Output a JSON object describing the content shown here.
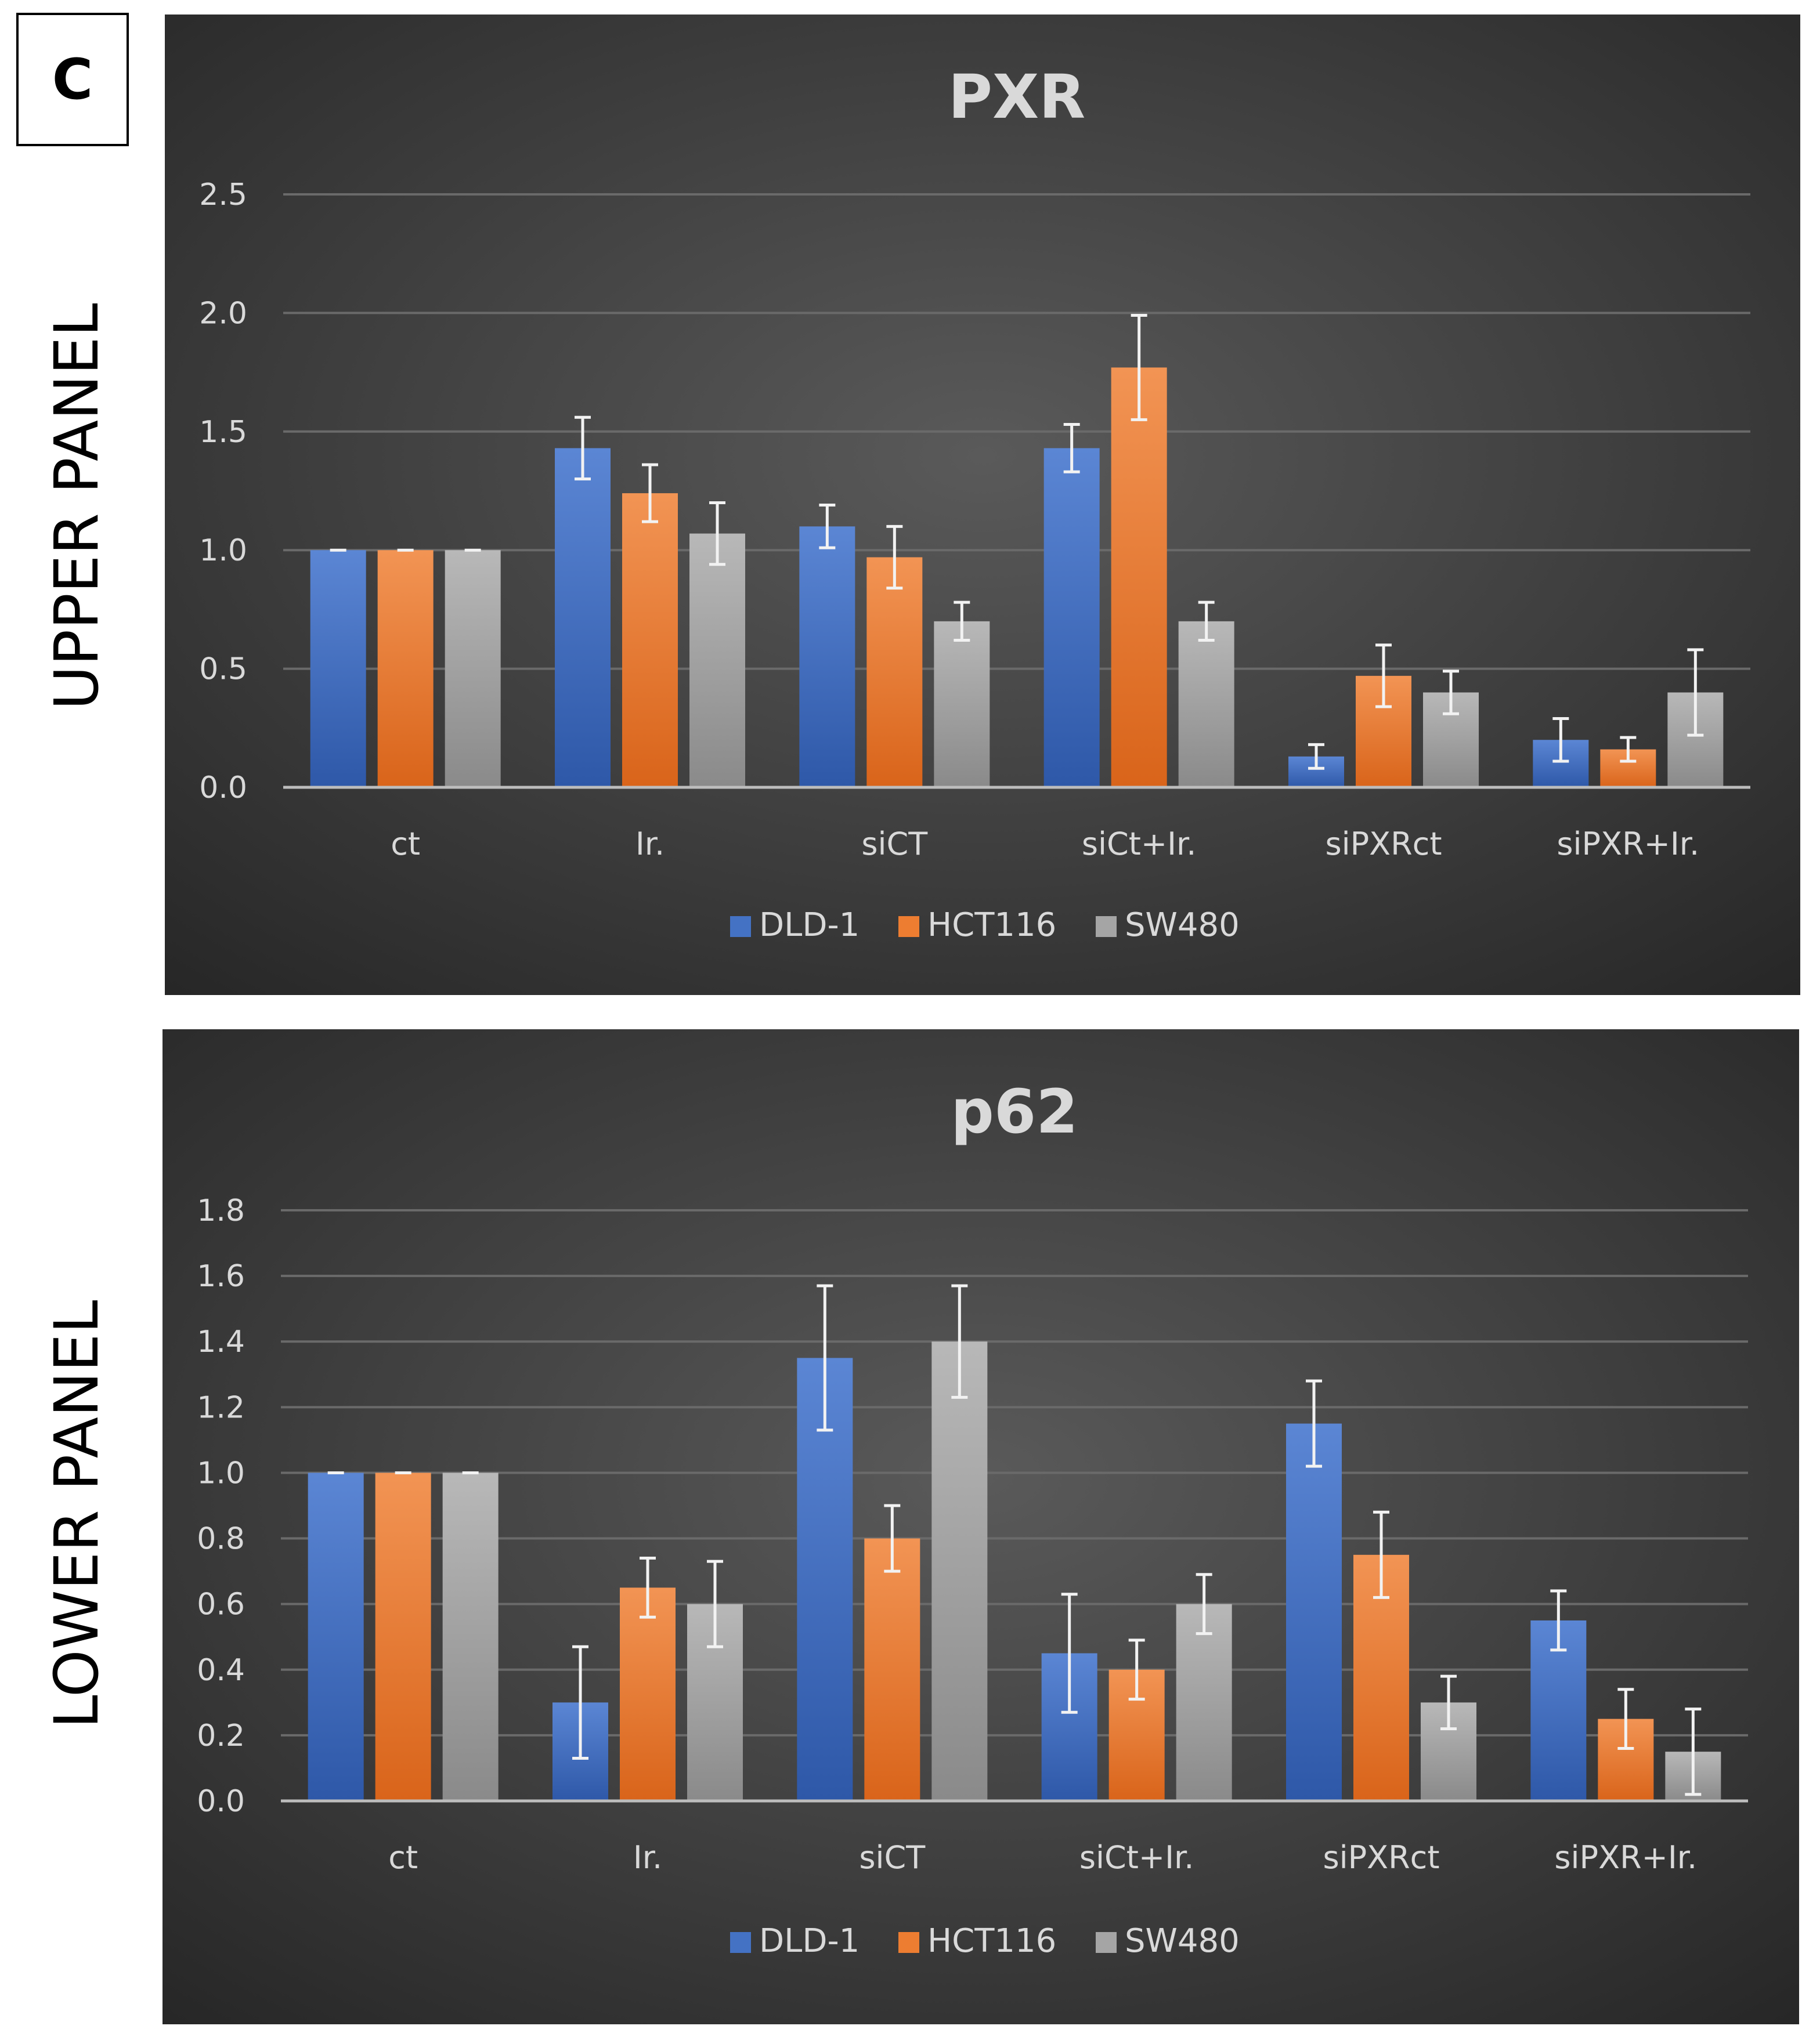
{
  "panel_label": "C",
  "side_labels": {
    "upper": "UPPER PANEL",
    "lower": "LOWER PANEL"
  },
  "colors": {
    "DLD-1": "#4472c4",
    "HCT116": "#ed7d31",
    "SW480": "#a5a5a5",
    "background_light": "#5a5a5a",
    "background_dark": "#262626",
    "gridline": "#6a6a6a",
    "text": "#d9d9d9"
  },
  "chart_data": [
    {
      "type": "bar",
      "title": "PXR",
      "categories": [
        "ct",
        "Ir.",
        "siCT",
        "siCt+Ir.",
        "siPXRct",
        "siPXR+Ir."
      ],
      "ylim": [
        0,
        2.5
      ],
      "yticks": [
        "0.0",
        "0.5",
        "1.0",
        "1.5",
        "2.0",
        "2.5"
      ],
      "tick_values": [
        0,
        0.5,
        1.0,
        1.5,
        2.0,
        2.5
      ],
      "legend_position": "bottom",
      "series": [
        {
          "name": "DLD-1",
          "values": [
            1.0,
            1.43,
            1.1,
            1.43,
            0.13,
            0.2
          ],
          "errors": [
            0.0,
            0.13,
            0.09,
            0.1,
            0.05,
            0.09
          ]
        },
        {
          "name": "HCT116",
          "values": [
            1.0,
            1.24,
            0.97,
            1.77,
            0.47,
            0.16
          ],
          "errors": [
            0.0,
            0.12,
            0.13,
            0.22,
            0.13,
            0.05
          ]
        },
        {
          "name": "SW480",
          "values": [
            1.0,
            1.07,
            0.7,
            0.7,
            0.4,
            0.4
          ],
          "errors": [
            0.0,
            0.13,
            0.08,
            0.08,
            0.09,
            0.18
          ]
        }
      ]
    },
    {
      "type": "bar",
      "title": "p62",
      "categories": [
        "ct",
        "Ir.",
        "siCT",
        "siCt+Ir.",
        "siPXRct",
        "siPXR+Ir."
      ],
      "ylim": [
        0,
        1.8
      ],
      "yticks": [
        "0.0",
        "0.2",
        "0.4",
        "0.6",
        "0.8",
        "1.0",
        "1.2",
        "1.4",
        "1.6",
        "1.8"
      ],
      "tick_values": [
        0,
        0.2,
        0.4,
        0.6,
        0.8,
        1.0,
        1.2,
        1.4,
        1.6,
        1.8
      ],
      "legend_position": "bottom",
      "series": [
        {
          "name": "DLD-1",
          "values": [
            1.0,
            0.3,
            1.35,
            0.45,
            1.15,
            0.55
          ],
          "errors": [
            0.0,
            0.17,
            0.22,
            0.18,
            0.13,
            0.09
          ]
        },
        {
          "name": "HCT116",
          "values": [
            1.0,
            0.65,
            0.8,
            0.4,
            0.75,
            0.25
          ],
          "errors": [
            0.0,
            0.09,
            0.1,
            0.09,
            0.13,
            0.09
          ]
        },
        {
          "name": "SW480",
          "values": [
            1.0,
            0.6,
            1.4,
            0.6,
            0.3,
            0.15
          ],
          "errors": [
            0.0,
            0.13,
            0.17,
            0.09,
            0.08,
            0.13
          ]
        }
      ]
    }
  ]
}
